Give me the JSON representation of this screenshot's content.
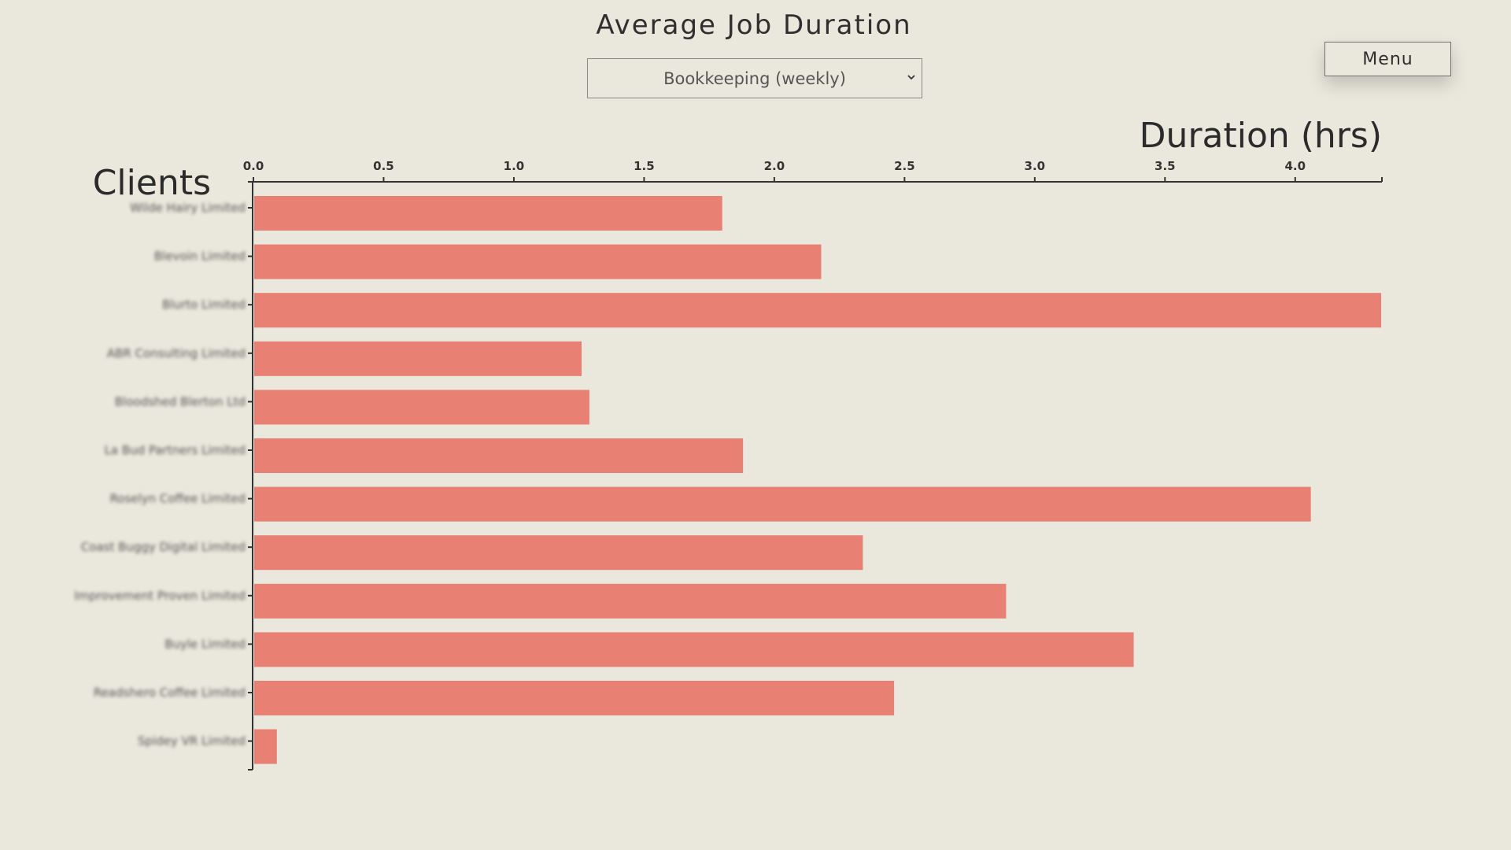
{
  "header": {
    "title": "Average Job Duration",
    "job_type_select": {
      "selected": "Bookkeeping (weekly)"
    },
    "menu_label": "Menu"
  },
  "colors": {
    "background": "#eae7dc",
    "bar": "#e88073",
    "axis": "#333333"
  },
  "icons": {
    "select_chevron": "chevron-down-icon"
  },
  "chart_data": {
    "type": "bar",
    "orientation": "horizontal",
    "xlabel": "Duration (hrs)",
    "ylabel": "Clients",
    "xlim": [
      0,
      4.33
    ],
    "x_ticks": [
      "0.0",
      "0.5",
      "1.0",
      "1.5",
      "2.0",
      "2.5",
      "3.0",
      "3.5",
      "4.0"
    ],
    "x_axis_position": "top",
    "grid": false,
    "category_labels_obscured": true,
    "categories": [
      "Wilde Hairy Limited",
      "Blevoin Limited",
      "Blurto Limited",
      "ABR Consulting Limited",
      "Bloodshed Blerton Ltd",
      "La Bud Partners Limited",
      "Roselyn Coffee Limited",
      "Coast Buggy Digital Limited",
      "Improvement Proven Limited",
      "Buyle Limited",
      "Readshero Coffee Limited",
      "Spidey VR Limited"
    ],
    "values": [
      1.8,
      2.18,
      4.33,
      1.26,
      1.29,
      1.88,
      4.06,
      2.34,
      2.89,
      3.38,
      2.46,
      0.09
    ]
  }
}
